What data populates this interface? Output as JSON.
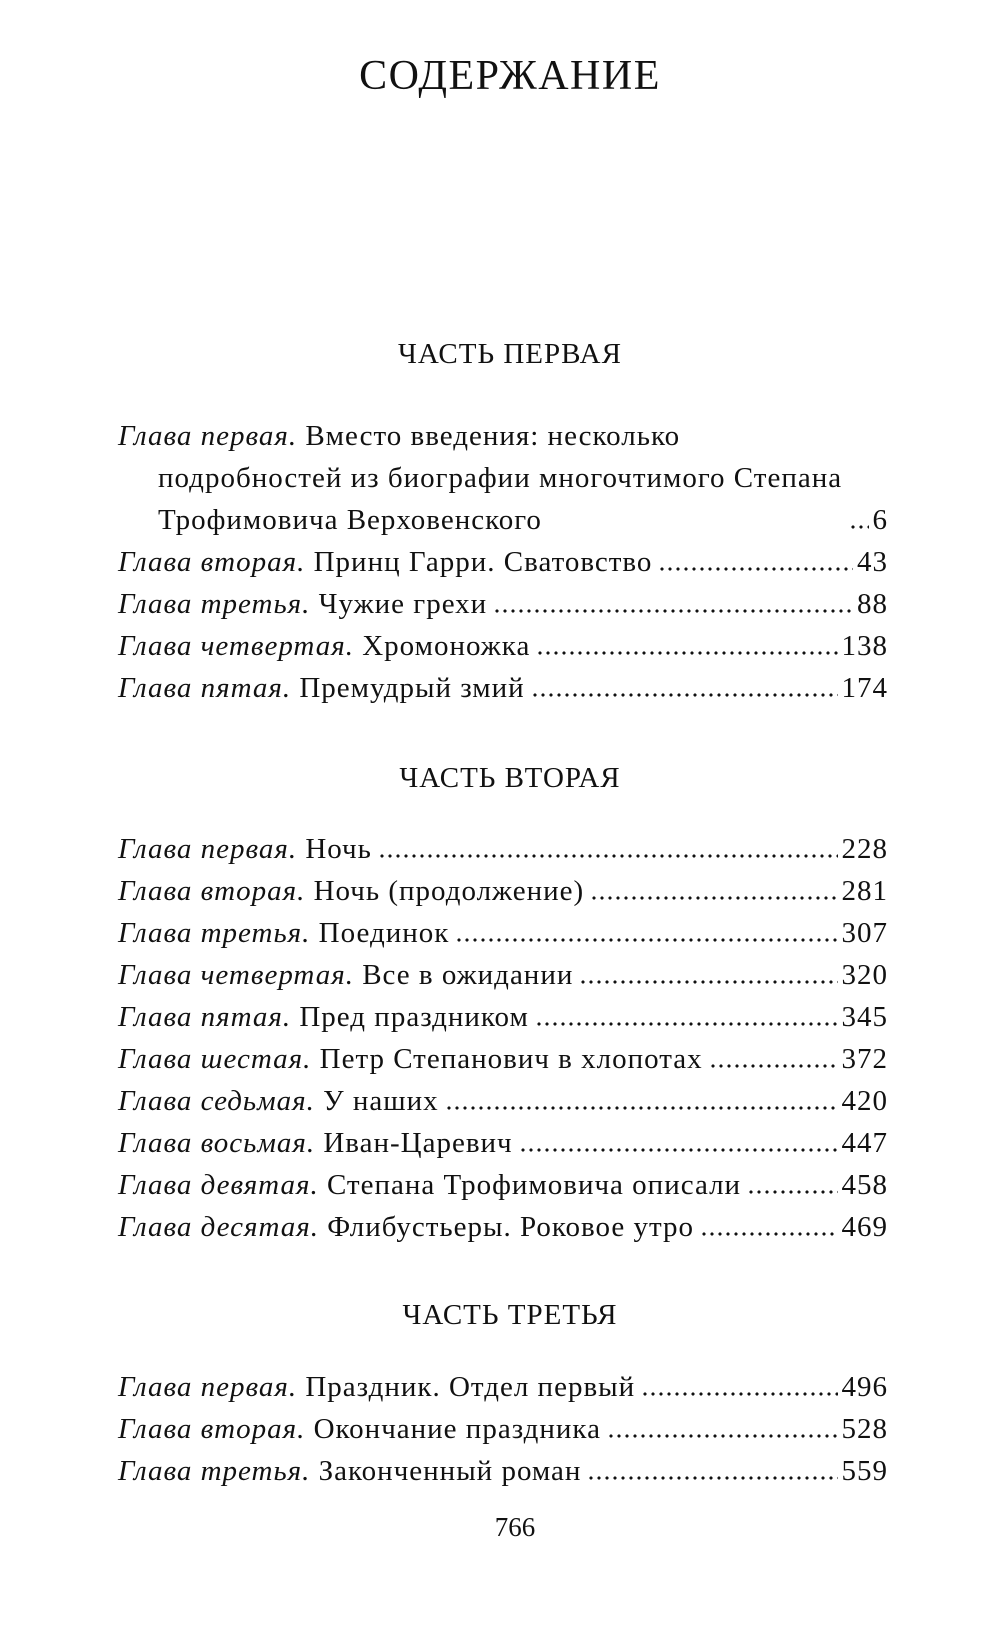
{
  "title": "СОДЕРЖАНИЕ",
  "parts": [
    {
      "heading": "ЧАСТЬ ПЕРВАЯ",
      "chapters": [
        {
          "label": "Глава первая.",
          "title": "Вместо введения: несколько подробностей из биографии многочтимого Степана Трофимовича Верховенского",
          "page": "6"
        },
        {
          "label": "Глава вторая.",
          "title": "Принц Гарри. Сватовство",
          "page": "43"
        },
        {
          "label": "Глава третья.",
          "title": "Чужие грехи",
          "page": "88"
        },
        {
          "label": "Глава четвертая.",
          "title": "Хромоножка",
          "page": "138"
        },
        {
          "label": "Глава пятая.",
          "title": "Премудрый змий",
          "page": "174"
        }
      ]
    },
    {
      "heading": "ЧАСТЬ ВТОРАЯ",
      "chapters": [
        {
          "label": "Глава первая.",
          "title": "Ночь",
          "page": "228"
        },
        {
          "label": "Глава вторая.",
          "title": "Ночь (продолжение)",
          "page": "281"
        },
        {
          "label": "Глава третья.",
          "title": "Поединок",
          "page": "307"
        },
        {
          "label": "Глава четвертая.",
          "title": "Все в ожидании",
          "page": "320"
        },
        {
          "label": "Глава пятая.",
          "title": "Пред праздником",
          "page": "345"
        },
        {
          "label": "Глава шестая.",
          "title": "Петр Степанович в хлопотах",
          "page": "372"
        },
        {
          "label": "Глава седьмая.",
          "title": "У наших",
          "page": "420"
        },
        {
          "label": "Глава восьмая.",
          "title": "Иван-Царевич",
          "page": "447"
        },
        {
          "label": "Глава девятая.",
          "title": "Степана Трофимовича описали",
          "page": "458"
        },
        {
          "label": "Глава десятая.",
          "title": "Флибустьеры. Роковое утро",
          "page": "469"
        }
      ]
    },
    {
      "heading": "ЧАСТЬ ТРЕТЬЯ",
      "chapters": [
        {
          "label": "Глава первая.",
          "title": "Праздник. Отдел первый",
          "page": "496"
        },
        {
          "label": "Глава вторая.",
          "title": "Окончание праздника",
          "page": "528"
        },
        {
          "label": "Глава третья.",
          "title": "Законченный роман",
          "page": "559"
        }
      ]
    }
  ],
  "page_number": "766"
}
